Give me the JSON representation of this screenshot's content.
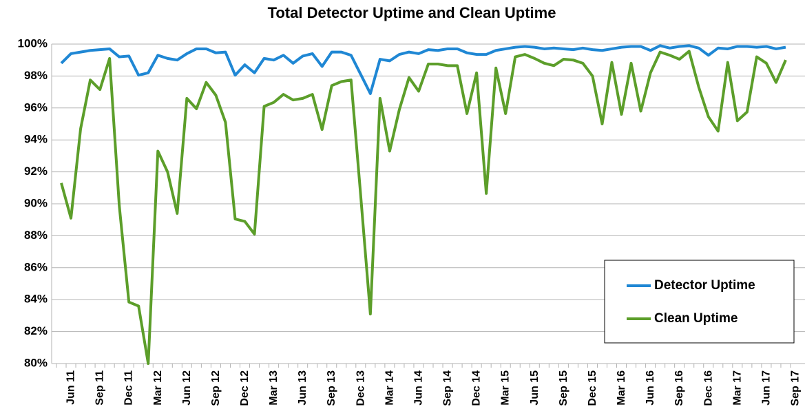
{
  "chart_data": {
    "type": "line",
    "title": "Total Detector Uptime and Clean Uptime",
    "categories": [
      null,
      "Jun 11",
      null,
      null,
      "Sep 11",
      null,
      null,
      "Dec 11",
      null,
      null,
      "Mar 12",
      null,
      null,
      "Jun 12",
      null,
      null,
      "Sep 12",
      null,
      null,
      "Dec 12",
      null,
      null,
      "Mar 13",
      null,
      null,
      "Jun 13",
      null,
      null,
      "Sep 13",
      null,
      null,
      "Dec 13",
      null,
      null,
      "Mar 14",
      null,
      null,
      "Jun 14",
      null,
      null,
      "Sep 14",
      null,
      null,
      "Dec 14",
      null,
      null,
      "Mar 15",
      null,
      null,
      "Jun 15",
      null,
      null,
      "Sep 15",
      null,
      null,
      "Dec 15",
      null,
      null,
      "Mar 16",
      null,
      null,
      "Jun 16",
      null,
      null,
      "Sep 16",
      null,
      null,
      "Dec 16",
      null,
      null,
      "Mar 17",
      null,
      null,
      "Jun 17",
      null,
      null,
      "Sep 17"
    ],
    "series": [
      {
        "name": "Detector Uptime",
        "color": "#1f87d4",
        "values": [
          98.8,
          99.4,
          99.5,
          99.6,
          99.65,
          99.7,
          99.2,
          99.25,
          98.05,
          98.2,
          99.3,
          99.1,
          99.0,
          99.4,
          99.7,
          99.7,
          99.45,
          99.5,
          98.05,
          98.7,
          98.2,
          99.1,
          99.0,
          99.3,
          98.8,
          99.25,
          99.4,
          98.6,
          99.5,
          99.5,
          99.3,
          98.1,
          96.9,
          99.05,
          98.95,
          99.35,
          99.5,
          99.4,
          99.65,
          99.6,
          99.7,
          99.7,
          99.45,
          99.35,
          99.35,
          99.6,
          99.7,
          99.8,
          99.85,
          99.8,
          99.7,
          99.75,
          99.7,
          99.65,
          99.75,
          99.65,
          99.6,
          99.7,
          99.8,
          99.85,
          99.85,
          99.6,
          99.9,
          99.75,
          99.85,
          99.9,
          99.75,
          99.3,
          99.75,
          99.7,
          99.85,
          99.85,
          99.8,
          99.85,
          99.7,
          99.8,
          null
        ]
      },
      {
        "name": "Clean Uptime",
        "color": "#5c9e2a",
        "values": [
          91.3,
          89.1,
          94.7,
          97.75,
          97.15,
          99.1,
          89.9,
          83.85,
          83.6,
          80,
          93.3,
          92,
          89.4,
          96.6,
          95.95,
          97.6,
          96.8,
          95.1,
          89.05,
          88.9,
          88.1,
          96.1,
          96.35,
          96.85,
          96.5,
          96.6,
          96.85,
          94.65,
          97.4,
          97.65,
          97.75,
          90.5,
          83.1,
          96.6,
          93.3,
          95.9,
          97.9,
          97.05,
          98.75,
          98.75,
          98.65,
          98.65,
          95.65,
          98.2,
          90.65,
          98.5,
          95.65,
          99.2,
          99.35,
          99.1,
          98.8,
          98.65,
          99.05,
          99.0,
          98.8,
          98.0,
          95.0,
          98.85,
          95.6,
          98.8,
          95.8,
          98.2,
          99.5,
          99.3,
          99.05,
          99.55,
          97.3,
          95.45,
          94.55,
          98.85,
          95.2,
          95.75,
          99.2,
          98.8,
          97.6,
          99.0,
          null
        ]
      }
    ],
    "ylim": [
      80,
      100
    ],
    "yticks": [
      {
        "value": 80,
        "label": "80%"
      },
      {
        "value": 82,
        "label": "82%"
      },
      {
        "value": 84,
        "label": "84%"
      },
      {
        "value": 86,
        "label": "86%"
      },
      {
        "value": 88,
        "label": "88%"
      },
      {
        "value": 90,
        "label": "90%"
      },
      {
        "value": 92,
        "label": "92%"
      },
      {
        "value": 94,
        "label": "94%"
      },
      {
        "value": 96,
        "label": "96%"
      },
      {
        "value": 98,
        "label": "98%"
      },
      {
        "value": 100,
        "label": "100%"
      }
    ],
    "grid": true,
    "legend": "lower right"
  }
}
